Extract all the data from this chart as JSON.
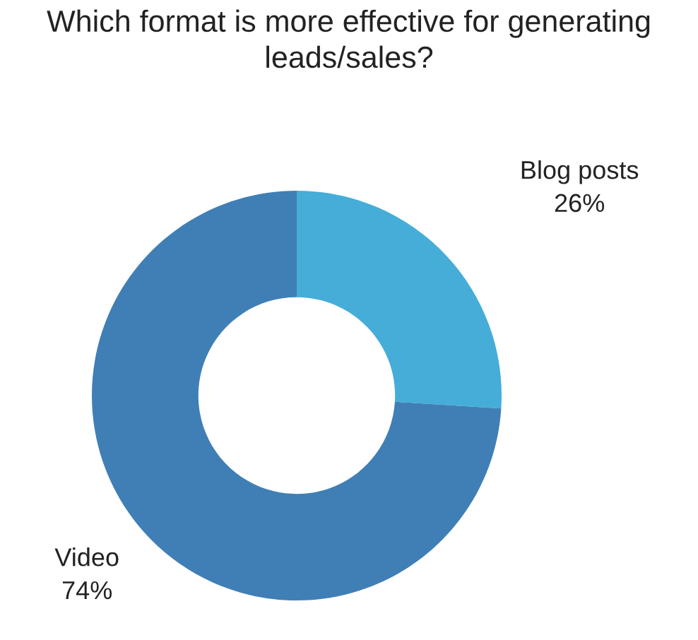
{
  "chart_data": {
    "type": "donut",
    "title": "Which format is more effective for generating leads/sales?",
    "categories": [
      "Blog posts",
      "Video"
    ],
    "values": [
      26,
      74
    ],
    "value_labels": [
      "26%",
      "74%"
    ],
    "colors": [
      "#45add8",
      "#3f7fb6"
    ],
    "legend": false
  }
}
